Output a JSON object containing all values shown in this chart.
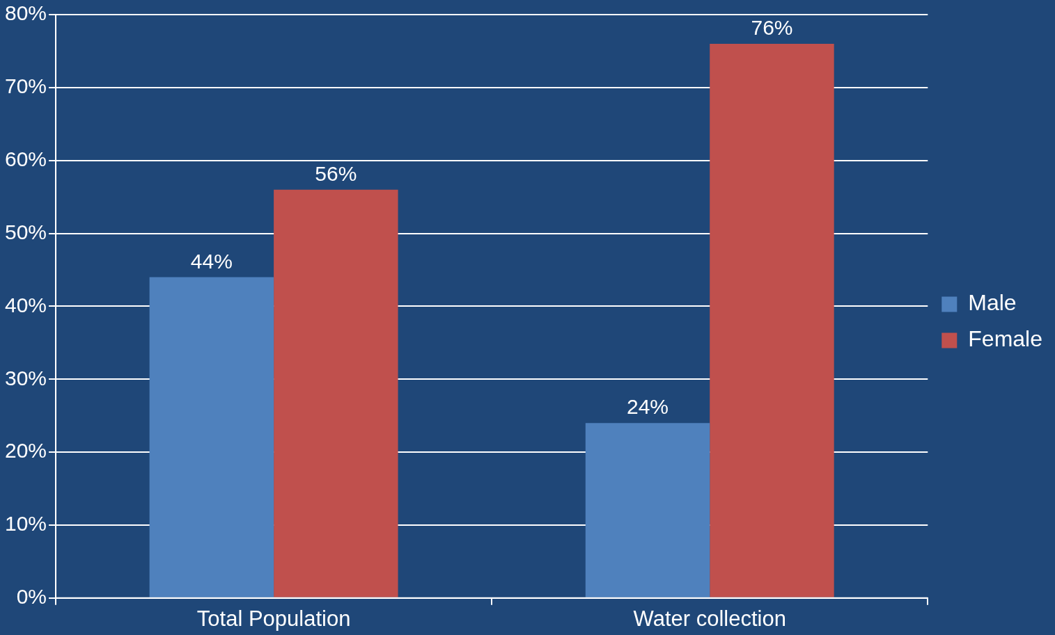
{
  "chart_data": {
    "type": "bar",
    "categories": [
      "Total Population",
      "Water collection"
    ],
    "series": [
      {
        "name": "Male",
        "color": "#4f81bd",
        "values": [
          44,
          24
        ],
        "value_labels": [
          "44%",
          "24%"
        ]
      },
      {
        "name": "Female",
        "color": "#c0504d",
        "values": [
          56,
          76
        ],
        "value_labels": [
          "56%",
          "76%"
        ]
      }
    ],
    "ylim": [
      0,
      80
    ],
    "yticks": [
      {
        "value": 0,
        "label": "0%"
      },
      {
        "value": 10,
        "label": "10%"
      },
      {
        "value": 20,
        "label": "20%"
      },
      {
        "value": 30,
        "label": "30%"
      },
      {
        "value": 40,
        "label": "40%"
      },
      {
        "value": 50,
        "label": "50%"
      },
      {
        "value": 60,
        "label": "60%"
      },
      {
        "value": 70,
        "label": "70%"
      },
      {
        "value": 80,
        "label": "80%"
      }
    ],
    "grid": "y",
    "legend": "right"
  }
}
